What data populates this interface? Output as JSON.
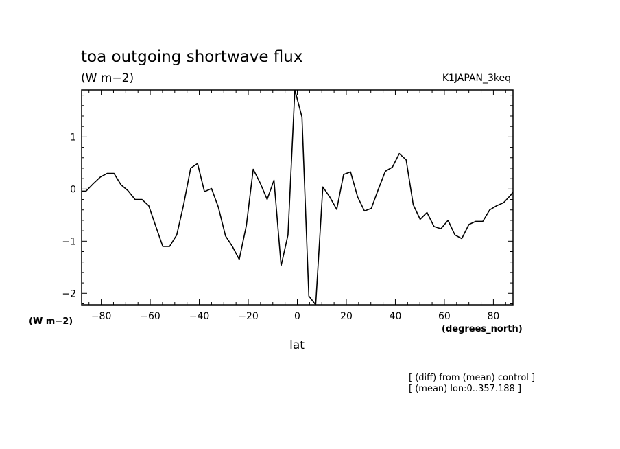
{
  "chart_data": {
    "type": "line",
    "title": "toa outgoing shortwave flux",
    "units_top": "(W m−2)",
    "units_left": "(W m−2)",
    "run_name": "K1JAPAN_3keq",
    "xlabel": "lat",
    "x_units": "(degrees_north)",
    "xlim": [
      -88,
      88
    ],
    "ylim": [
      -2.22,
      1.9
    ],
    "x_ticks": [
      -80,
      -60,
      -40,
      -20,
      0,
      20,
      40,
      60,
      80
    ],
    "x_tick_labels": [
      "−80",
      "−60",
      "−40",
      "−20",
      "0",
      "20",
      "40",
      "60",
      "80"
    ],
    "y_ticks": [
      1,
      0,
      -1,
      -2
    ],
    "y_tick_labels": [
      "1",
      "0",
      "−1",
      "−2"
    ],
    "grid": false,
    "notes": [
      "[ (diff) from (mean) control ]",
      "[ (mean) lon:0..357.188 ]"
    ],
    "series": [
      {
        "x": [
          -88,
          -86.2,
          -83.3,
          -80.4,
          -77.6,
          -74.8,
          -71.9,
          -69.1,
          -66.2,
          -63.4,
          -60.6,
          -57.7,
          -54.9,
          -52.1,
          -49.2,
          -46.4,
          -43.5,
          -40.7,
          -37.9,
          -35,
          -32.2,
          -29.3,
          -26.5,
          -23.7,
          -20.8,
          -18,
          -15.2,
          -12.3,
          -9.5,
          -6.6,
          -3.8,
          -1,
          1.9,
          4.7,
          7.5,
          10.4,
          13.2,
          16.1,
          18.9,
          21.7,
          24.6,
          27.4,
          30.2,
          33.1,
          35.9,
          38.8,
          41.6,
          44.4,
          47.3,
          50.1,
          52.9,
          55.8,
          58.6,
          61.5,
          64.3,
          67.1,
          70,
          72.8,
          75.7,
          78.5,
          81.3,
          84.2,
          87,
          88
        ],
        "values": [
          -0.04,
          -0.04,
          0.1,
          0.23,
          0.3,
          0.3,
          0.08,
          -0.03,
          -0.2,
          -0.2,
          -0.32,
          -0.72,
          -1.1,
          -1.1,
          -0.88,
          -0.3,
          0.4,
          0.49,
          -0.05,
          0.01,
          -0.35,
          -0.9,
          -1.1,
          -1.35,
          -0.7,
          0.38,
          0.12,
          -0.2,
          0.17,
          -1.47,
          -0.88,
          1.9,
          1.38,
          -2.05,
          -2.22,
          0.04,
          -0.15,
          -0.39,
          0.28,
          0.33,
          -0.15,
          -0.42,
          -0.37,
          0.0,
          0.34,
          0.42,
          0.68,
          0.56,
          -0.3,
          -0.58,
          -0.45,
          -0.72,
          -0.76,
          -0.6,
          -0.88,
          -0.95,
          -0.68,
          -0.62,
          -0.62,
          -0.4,
          -0.32,
          -0.26,
          -0.12,
          -0.06
        ]
      }
    ]
  }
}
